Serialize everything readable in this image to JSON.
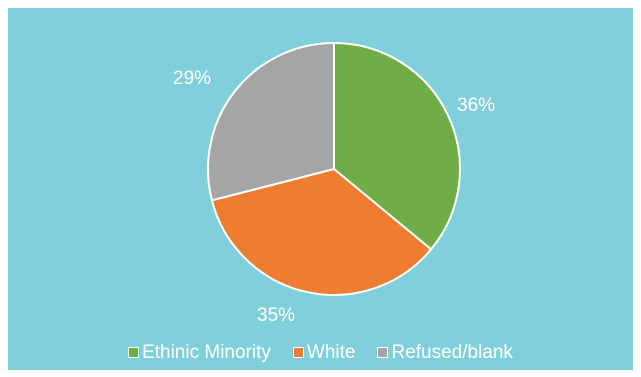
{
  "chart_data": {
    "type": "pie",
    "title": "",
    "categories": [
      "Ethinic Minority",
      "White",
      "Refused/blank"
    ],
    "values": [
      36,
      35,
      29
    ],
    "data_labels": [
      "36%",
      "35%",
      "29%"
    ],
    "colors": [
      "#70ad47",
      "#ed7d31",
      "#a5a5a5"
    ],
    "legend_position": "bottom",
    "start_angle": "12 o'clock, clockwise",
    "background_color": "#7fd0da"
  }
}
